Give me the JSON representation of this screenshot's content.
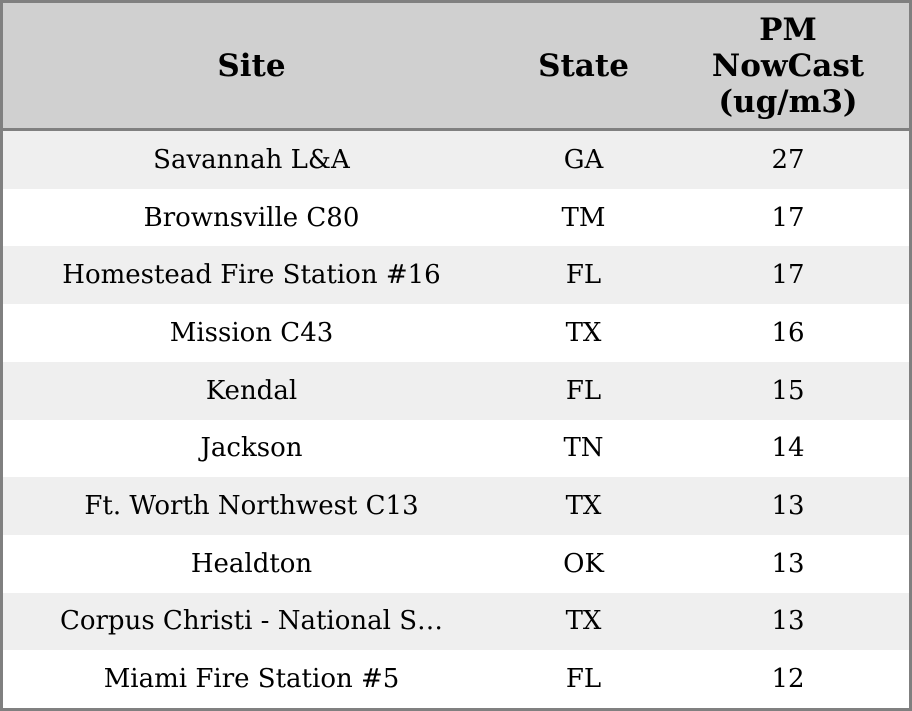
{
  "table": {
    "columns": [
      {
        "key": "site",
        "label": "Site"
      },
      {
        "key": "state",
        "label": "State"
      },
      {
        "key": "pm",
        "label": "PM\nNowCast\n(ug/m3)"
      }
    ],
    "rows": [
      {
        "site": "Savannah L&A",
        "state": "GA",
        "pm": "27"
      },
      {
        "site": "Brownsville C80",
        "state": "TM",
        "pm": "17"
      },
      {
        "site": "Homestead Fire Station #16",
        "state": "FL",
        "pm": "17"
      },
      {
        "site": "Mission C43",
        "state": "TX",
        "pm": "16"
      },
      {
        "site": "Kendal",
        "state": "FL",
        "pm": "15"
      },
      {
        "site": "Jackson",
        "state": "TN",
        "pm": "14"
      },
      {
        "site": "Ft. Worth Northwest C13",
        "state": "TX",
        "pm": "13"
      },
      {
        "site": "Healdton",
        "state": "OK",
        "pm": "13"
      },
      {
        "site": "Corpus Christi - National S…",
        "state": "TX",
        "pm": "13"
      },
      {
        "site": "Miami Fire Station #5",
        "state": "FL",
        "pm": "12"
      }
    ]
  },
  "colors": {
    "header_background": "#d0d0d0",
    "row_stripe": "#efefef",
    "row_plain": "#ffffff",
    "border": "#808080",
    "text": "#000000"
  }
}
